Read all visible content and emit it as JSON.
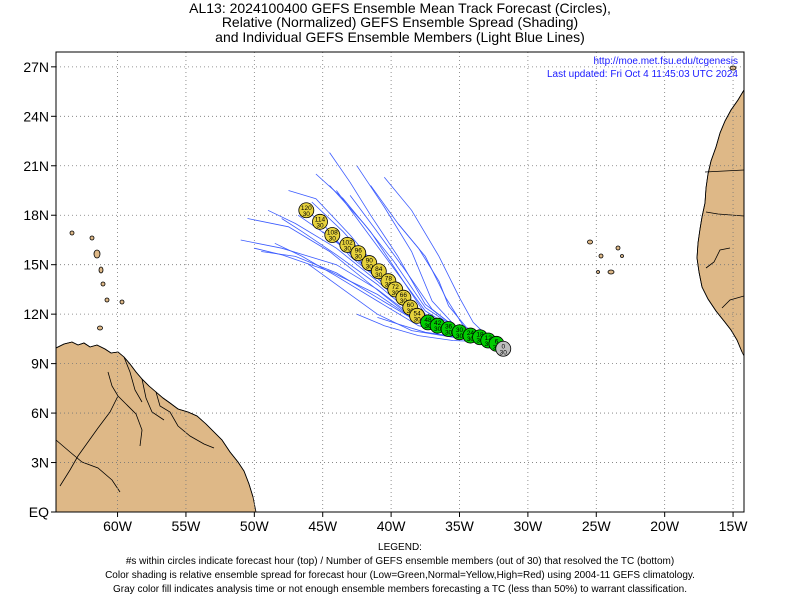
{
  "title": {
    "line1": "AL13: 2024100400 GEFS Ensemble Mean Track Forecast (Circles),",
    "line2": "Relative (Normalized) GEFS Ensemble Spread (Shading)",
    "line3": "and Individual GEFS Ensemble Members (Light Blue Lines)"
  },
  "attribution": {
    "url": "http://moe.met.fsu.edu/tcgenesis",
    "updated": "Last updated: Fri Oct 4 11:45:03 UTC 2024"
  },
  "axes": {
    "lon_labels": [
      "60W",
      "55W",
      "50W",
      "45W",
      "40W",
      "35W",
      "30W",
      "25W",
      "20W",
      "15W"
    ],
    "lon_values": [
      -60,
      -55,
      -50,
      -45,
      -40,
      -35,
      -30,
      -25,
      -20,
      -15
    ],
    "lat_labels": [
      "EQ",
      "3N",
      "6N",
      "9N",
      "12N",
      "15N",
      "18N",
      "21N",
      "24N",
      "27N"
    ],
    "lat_values": [
      0,
      3,
      6,
      9,
      12,
      15,
      18,
      21,
      24,
      27
    ],
    "lon_range": [
      -64.5,
      -14.2
    ],
    "lat_range": [
      0,
      27.9
    ],
    "grid": "dotted"
  },
  "colors": {
    "land": "#deb887",
    "ocean": "#ffffff",
    "member_line": "#3b5bff",
    "low_spread": "#00cc00",
    "normal_spread": "#e6d23c",
    "analysis": "#bebebe"
  },
  "chart_data": {
    "type": "track",
    "mean_track": [
      {
        "hour": "0",
        "members": "30",
        "lon": -31.8,
        "lat": 9.9,
        "spread": "analysis"
      },
      {
        "hour": "6",
        "members": "30",
        "lon": -32.3,
        "lat": 10.2,
        "spread": "low"
      },
      {
        "hour": "12",
        "members": "30",
        "lon": -32.9,
        "lat": 10.4,
        "spread": "low"
      },
      {
        "hour": "18",
        "members": "30",
        "lon": -33.5,
        "lat": 10.6,
        "spread": "low"
      },
      {
        "hour": "24",
        "members": "30",
        "lon": -34.2,
        "lat": 10.7,
        "spread": "low"
      },
      {
        "hour": "30",
        "members": "30",
        "lon": -35.0,
        "lat": 10.9,
        "spread": "low"
      },
      {
        "hour": "36",
        "members": "30",
        "lon": -35.8,
        "lat": 11.1,
        "spread": "low"
      },
      {
        "hour": "42",
        "members": "30",
        "lon": -36.6,
        "lat": 11.3,
        "spread": "low"
      },
      {
        "hour": "48",
        "members": "30",
        "lon": -37.3,
        "lat": 11.5,
        "spread": "low"
      },
      {
        "hour": "54",
        "members": "30",
        "lon": -38.1,
        "lat": 11.9,
        "spread": "normal"
      },
      {
        "hour": "60",
        "members": "30",
        "lon": -38.6,
        "lat": 12.4,
        "spread": "normal"
      },
      {
        "hour": "66",
        "members": "30",
        "lon": -39.1,
        "lat": 13.0,
        "spread": "normal"
      },
      {
        "hour": "72",
        "members": "30",
        "lon": -39.7,
        "lat": 13.5,
        "spread": "normal"
      },
      {
        "hour": "78",
        "members": "30",
        "lon": -40.2,
        "lat": 14.0,
        "spread": "normal"
      },
      {
        "hour": "84",
        "members": "30",
        "lon": -40.9,
        "lat": 14.6,
        "spread": "normal"
      },
      {
        "hour": "90",
        "members": "30",
        "lon": -41.6,
        "lat": 15.1,
        "spread": "normal"
      },
      {
        "hour": "96",
        "members": "30",
        "lon": -42.4,
        "lat": 15.7,
        "spread": "normal"
      },
      {
        "hour": "102",
        "members": "30",
        "lon": -43.2,
        "lat": 16.2,
        "spread": "normal"
      },
      {
        "hour": "108",
        "members": "30",
        "lon": -44.3,
        "lat": 16.8,
        "spread": "normal"
      },
      {
        "hour": "114",
        "members": "30",
        "lon": -45.2,
        "lat": 17.6,
        "spread": "normal"
      },
      {
        "hour": "120",
        "members": "30",
        "lon": -46.2,
        "lat": 18.3,
        "spread": "normal"
      }
    ],
    "members": [
      [
        [
          -32.5,
          10.3
        ],
        [
          -35,
          10.9
        ],
        [
          -38,
          11.8
        ],
        [
          -41,
          14.0
        ],
        [
          -44,
          16.0
        ],
        [
          -47,
          17.5
        ],
        [
          -49,
          18.3
        ]
      ],
      [
        [
          -32.5,
          10.3
        ],
        [
          -35,
          10.8
        ],
        [
          -38,
          11.9
        ],
        [
          -40.5,
          14.3
        ],
        [
          -43,
          16.8
        ],
        [
          -45.5,
          19.0
        ],
        [
          -47.5,
          19.5
        ]
      ],
      [
        [
          -32.5,
          10.3
        ],
        [
          -35,
          11.0
        ],
        [
          -37.5,
          12.6
        ],
        [
          -39.5,
          15.5
        ],
        [
          -41.5,
          18.0
        ],
        [
          -43,
          20.0
        ],
        [
          -44.5,
          21.8
        ]
      ],
      [
        [
          -32.5,
          10.3
        ],
        [
          -35,
          11.0
        ],
        [
          -37,
          12.8
        ],
        [
          -38.5,
          15.8
        ],
        [
          -40.5,
          18.5
        ],
        [
          -42.5,
          21.0
        ]
      ],
      [
        [
          -32.5,
          10.3
        ],
        [
          -34.5,
          11.0
        ],
        [
          -36,
          13.0
        ],
        [
          -37.5,
          15.5
        ],
        [
          -39.5,
          17.5
        ],
        [
          -41.5,
          19.8
        ]
      ],
      [
        [
          -32.5,
          10.3
        ],
        [
          -34,
          11.5
        ],
        [
          -35,
          13.0
        ],
        [
          -36.5,
          15.5
        ],
        [
          -38.5,
          18.3
        ],
        [
          -40.5,
          20.3
        ]
      ],
      [
        [
          -32.5,
          10.3
        ],
        [
          -35,
          10.8
        ],
        [
          -38,
          11.5
        ],
        [
          -41,
          13.0
        ],
        [
          -44,
          14.5
        ],
        [
          -47,
          15.5
        ],
        [
          -49.5,
          15.8
        ]
      ],
      [
        [
          -32.5,
          10.3
        ],
        [
          -35,
          10.8
        ],
        [
          -38,
          11.6
        ],
        [
          -41,
          13.5
        ],
        [
          -44,
          15.0
        ],
        [
          -48,
          16.0
        ],
        [
          -51,
          16.5
        ]
      ],
      [
        [
          -32.5,
          10.3
        ],
        [
          -35.5,
          10.9
        ],
        [
          -38.5,
          11.8
        ],
        [
          -41.5,
          13.8
        ],
        [
          -44.5,
          15.8
        ],
        [
          -47.5,
          17.3
        ],
        [
          -50.5,
          17.8
        ]
      ],
      [
        [
          -32.5,
          10.3
        ],
        [
          -35,
          10.7
        ],
        [
          -38,
          11.3
        ],
        [
          -41,
          12.8
        ],
        [
          -44,
          14.3
        ],
        [
          -46.5,
          15.5
        ],
        [
          -48.5,
          16.3
        ]
      ],
      [
        [
          -32.5,
          10.3
        ],
        [
          -35,
          10.8
        ],
        [
          -38,
          11.7
        ],
        [
          -41,
          13.8
        ],
        [
          -44,
          15.6
        ],
        [
          -46.5,
          17.0
        ],
        [
          -48,
          17.8
        ]
      ],
      [
        [
          -32.5,
          10.3
        ],
        [
          -34.5,
          10.8
        ],
        [
          -37,
          11.5
        ],
        [
          -40,
          13.5
        ],
        [
          -43,
          15.5
        ],
        [
          -45,
          17.5
        ],
        [
          -46.5,
          18.5
        ]
      ],
      [
        [
          -32.5,
          10.3
        ],
        [
          -35.5,
          10.6
        ],
        [
          -38.5,
          11.0
        ],
        [
          -41,
          12.0
        ],
        [
          -43.5,
          13.5
        ],
        [
          -46,
          15.0
        ]
      ],
      [
        [
          -32.5,
          10.3
        ],
        [
          -35.5,
          10.4
        ],
        [
          -38,
          10.7
        ],
        [
          -40.5,
          11.3
        ],
        [
          -42.5,
          12.0
        ]
      ],
      [
        [
          -32.5,
          10.3
        ],
        [
          -35,
          10.6
        ],
        [
          -37.5,
          10.9
        ],
        [
          -39.5,
          11.4
        ],
        [
          -41,
          11.8
        ]
      ],
      [
        [
          -32.5,
          10.3
        ],
        [
          -35,
          10.9
        ],
        [
          -37.5,
          12.0
        ],
        [
          -39.5,
          14.5
        ],
        [
          -41.5,
          17.0
        ],
        [
          -43.5,
          19.0
        ],
        [
          -45.5,
          20.5
        ]
      ],
      [
        [
          -32.5,
          10.3
        ],
        [
          -35,
          11.0
        ],
        [
          -37,
          12.3
        ],
        [
          -39,
          14.7
        ],
        [
          -41.2,
          17.2
        ],
        [
          -43,
          19.2
        ]
      ],
      [
        [
          -32.5,
          10.3
        ],
        [
          -34.5,
          11.2
        ],
        [
          -35.8,
          12.5
        ],
        [
          -36.5,
          14.0
        ],
        [
          -38,
          16.0
        ],
        [
          -39.5,
          17.5
        ]
      ],
      [
        [
          -32.5,
          10.3
        ],
        [
          -35,
          10.9
        ],
        [
          -37.5,
          12.2
        ],
        [
          -40,
          15.0
        ],
        [
          -42.5,
          17.8
        ],
        [
          -44,
          19.5
        ]
      ],
      [
        [
          -32.5,
          10.3
        ],
        [
          -35,
          10.7
        ],
        [
          -38,
          11.5
        ],
        [
          -41,
          13.2
        ],
        [
          -44.5,
          14.6
        ],
        [
          -48,
          15.6
        ],
        [
          -50,
          16.0
        ]
      ],
      [
        [
          -32.5,
          10.3
        ],
        [
          -35,
          10.9
        ],
        [
          -38,
          12.0
        ],
        [
          -41,
          14.2
        ],
        [
          -44,
          16.4
        ],
        [
          -46.8,
          18.0
        ]
      ],
      [
        [
          -32.5,
          10.3
        ],
        [
          -35,
          10.8
        ],
        [
          -37.8,
          11.9
        ],
        [
          -40.8,
          14.5
        ],
        [
          -43.5,
          17.0
        ],
        [
          -45.8,
          18.8
        ]
      ],
      [
        [
          -32.5,
          10.3
        ],
        [
          -35,
          11.0
        ],
        [
          -37.5,
          12.4
        ],
        [
          -39.8,
          15.2
        ],
        [
          -42,
          17.5
        ],
        [
          -44.5,
          19.8
        ]
      ],
      [
        [
          -32.5,
          10.3
        ],
        [
          -35,
          10.7
        ],
        [
          -37.5,
          11.6
        ],
        [
          -40,
          13.4
        ],
        [
          -42.5,
          15.4
        ],
        [
          -45,
          17.0
        ]
      ]
    ]
  },
  "legend": {
    "header": "LEGEND:",
    "line1": "#s within circles indicate forecast hour (top) / Number of GEFS ensemble members (out of 30) that resolved the TC (bottom)",
    "line2": "Color shading is relative ensemble spread for forecast hour (Low=Green,Normal=Yellow,High=Red) using 2004-11 GEFS climatology.",
    "line3": "Gray color fill indicates analysis time or not enough ensemble members forecasting a TC (less than 50%) to warrant classification."
  }
}
